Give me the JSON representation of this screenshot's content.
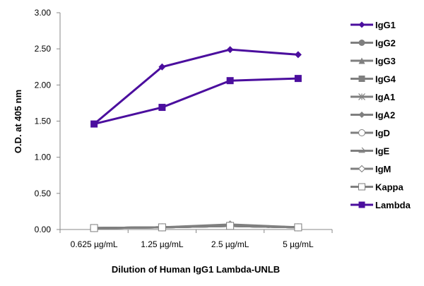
{
  "chart_data": {
    "type": "line",
    "title": "",
    "xlabel": "Dilution of Human IgG1 Lambda-UNLB",
    "ylabel": "O.D. at 405 nm",
    "ylim": [
      0,
      3
    ],
    "yticks": [
      "0.00",
      "0.50",
      "1.00",
      "1.50",
      "2.00",
      "2.50",
      "3.00"
    ],
    "categories": [
      "0.625 µg/mL",
      "1.25 µg/mL",
      "2.5 µg/mL",
      "5 µg/mL"
    ],
    "grid": false,
    "legend_position": "right",
    "series": [
      {
        "name": "IgG1",
        "color": "#4B0E9E",
        "marker": "diamond",
        "values": [
          1.46,
          2.25,
          2.49,
          2.42
        ]
      },
      {
        "name": "IgG2",
        "color": "#7F7F7F",
        "marker": "circle",
        "values": [
          0.02,
          0.03,
          0.05,
          0.03
        ]
      },
      {
        "name": "IgG3",
        "color": "#7F7F7F",
        "marker": "triangle",
        "values": [
          0.02,
          0.03,
          0.05,
          0.03
        ]
      },
      {
        "name": "IgG4",
        "color": "#7F7F7F",
        "marker": "square",
        "values": [
          0.02,
          0.03,
          0.05,
          0.03
        ]
      },
      {
        "name": "IgA1",
        "color": "#7F7F7F",
        "marker": "star",
        "values": [
          0.02,
          0.03,
          0.05,
          0.03
        ]
      },
      {
        "name": "IgA2",
        "color": "#7F7F7F",
        "marker": "diamond",
        "values": [
          0.02,
          0.03,
          0.05,
          0.03
        ]
      },
      {
        "name": "IgD",
        "color": "#7F7F7F",
        "marker": "open-circle",
        "values": [
          0.02,
          0.03,
          0.05,
          0.03
        ]
      },
      {
        "name": "IgE",
        "color": "#7F7F7F",
        "marker": "dash",
        "values": [
          0.02,
          0.03,
          0.05,
          0.03
        ]
      },
      {
        "name": "IgM",
        "color": "#7F7F7F",
        "marker": "open-diamond",
        "values": [
          0.02,
          0.03,
          0.07,
          0.03
        ]
      },
      {
        "name": "Kappa",
        "color": "#7F7F7F",
        "marker": "open-square",
        "values": [
          0.02,
          0.03,
          0.05,
          0.03
        ]
      },
      {
        "name": "Lambda",
        "color": "#4B0E9E",
        "marker": "square",
        "values": [
          1.46,
          1.69,
          2.06,
          2.09
        ]
      }
    ]
  }
}
